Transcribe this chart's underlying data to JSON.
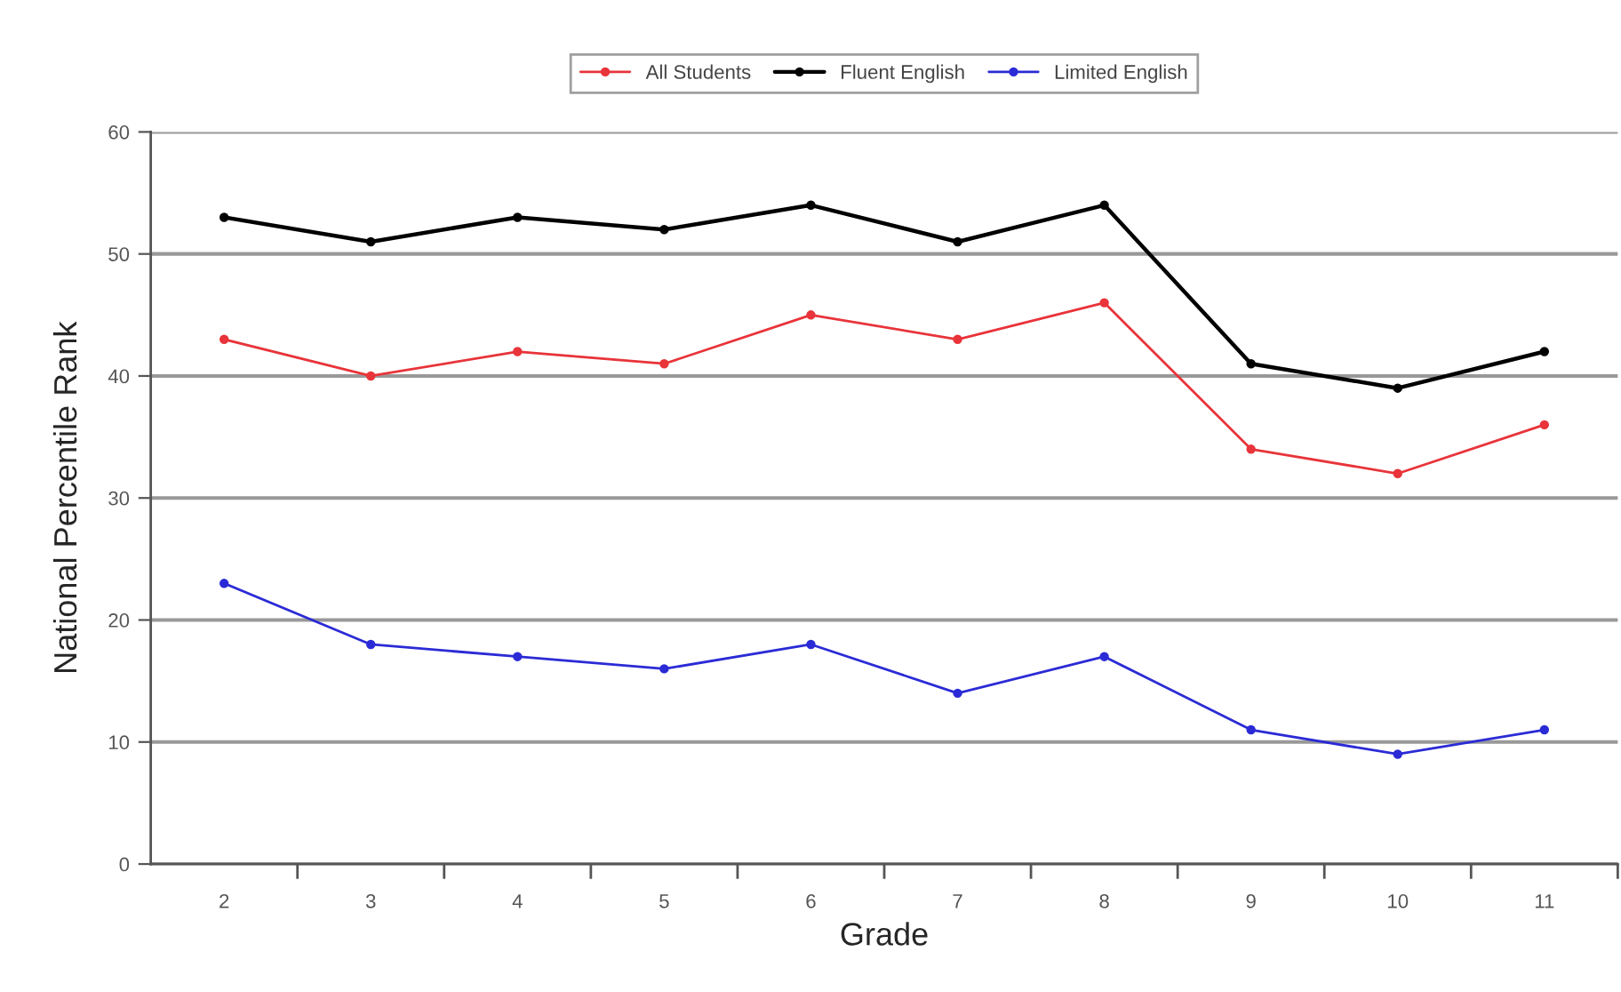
{
  "chart_data": {
    "type": "line",
    "xlabel": "Grade",
    "ylabel": "National Percentile Rank",
    "categories": [
      "2",
      "3",
      "4",
      "5",
      "6",
      "7",
      "8",
      "9",
      "10",
      "11"
    ],
    "series": [
      {
        "name": "All Students",
        "color": "#e8343a",
        "values": [
          43,
          40,
          42,
          41,
          45,
          43,
          46,
          34,
          32,
          36
        ]
      },
      {
        "name": "Fluent English",
        "color": "#000000",
        "values": [
          53,
          51,
          53,
          52,
          54,
          51,
          54,
          41,
          39,
          42
        ]
      },
      {
        "name": "Limited English",
        "color": "#2b2bd6",
        "values": [
          23,
          18,
          17,
          16,
          18,
          14,
          17,
          11,
          9,
          11
        ]
      }
    ],
    "ylim": [
      0,
      60
    ],
    "yticks": [
      0,
      10,
      20,
      30,
      40,
      50,
      60
    ],
    "grid": "y",
    "legend": "top",
    "marker": "circle",
    "line_style": "solid"
  }
}
